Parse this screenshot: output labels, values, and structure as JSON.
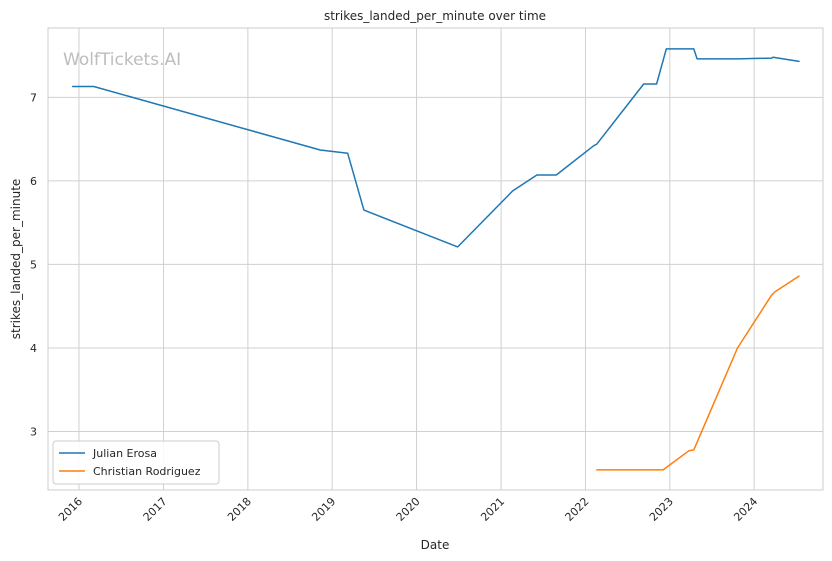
{
  "chart_data": {
    "type": "line",
    "title": "strikes_landed_per_minute over time",
    "xlabel": "Date",
    "ylabel": "strikes_landed_per_minute",
    "watermark": "WolfTickets.AI",
    "xlim": [
      "2015-08-20",
      "2024-10-25"
    ],
    "ylim": [
      2.3,
      7.83
    ],
    "x_ticks": [
      "2016-01-01",
      "2017-01-01",
      "2018-01-01",
      "2019-01-01",
      "2020-01-01",
      "2021-01-01",
      "2022-01-01",
      "2023-01-01",
      "2024-01-01"
    ],
    "x_tick_labels": [
      "2016",
      "2017",
      "2018",
      "2019",
      "2020",
      "2021",
      "2022",
      "2023",
      "2024"
    ],
    "y_ticks": [
      3,
      4,
      5,
      6,
      7
    ],
    "y_tick_labels": [
      "3",
      "4",
      "5",
      "6",
      "7"
    ],
    "grid": true,
    "legend_position": "lower-left",
    "series": [
      {
        "name": "Julian Erosa",
        "color": "#1f77b4",
        "points": [
          [
            "2015-12-05",
            7.13
          ],
          [
            "2016-03-05",
            7.13
          ],
          [
            "2018-11-10",
            6.37
          ],
          [
            "2019-03-09",
            6.33
          ],
          [
            "2019-05-18",
            5.65
          ],
          [
            "2020-06-27",
            5.21
          ],
          [
            "2021-02-20",
            5.88
          ],
          [
            "2021-06-05",
            6.07
          ],
          [
            "2021-08-28",
            6.07
          ],
          [
            "2022-02-05",
            6.42
          ],
          [
            "2022-02-19",
            6.44
          ],
          [
            "2022-09-10",
            7.16
          ],
          [
            "2022-11-05",
            7.16
          ],
          [
            "2022-12-17",
            7.58
          ],
          [
            "2023-04-15",
            7.58
          ],
          [
            "2023-04-29",
            7.46
          ],
          [
            "2023-10-21",
            7.46
          ],
          [
            "2024-03-16",
            7.47
          ],
          [
            "2024-03-23",
            7.48
          ],
          [
            "2024-07-13",
            7.43
          ]
        ]
      },
      {
        "name": "Christian Rodriguez",
        "color": "#ff7f0e",
        "points": [
          [
            "2022-02-19",
            2.54
          ],
          [
            "2022-12-03",
            2.54
          ],
          [
            "2023-03-25",
            2.77
          ],
          [
            "2023-04-15",
            2.78
          ],
          [
            "2023-10-21",
            4.0
          ],
          [
            "2024-03-16",
            4.63
          ],
          [
            "2024-03-30",
            4.67
          ],
          [
            "2024-07-13",
            4.86
          ]
        ]
      }
    ]
  }
}
